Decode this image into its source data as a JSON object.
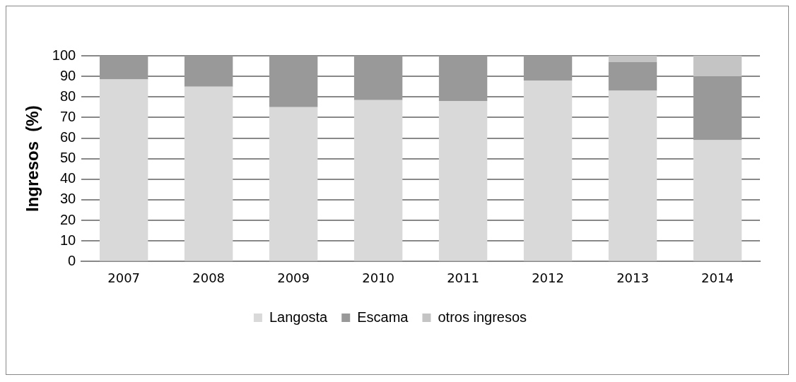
{
  "chart_data": {
    "type": "bar",
    "stacked": true,
    "ylabel": "Ingresos  (%)",
    "categories": [
      "2007",
      "2008",
      "2009",
      "2010",
      "2011",
      "2012",
      "2013",
      "2014"
    ],
    "series": [
      {
        "name": "Langosta",
        "color": "#d9d9d9",
        "values": [
          88.5,
          85,
          75,
          78.5,
          78,
          88,
          83,
          59
        ]
      },
      {
        "name": "Escama",
        "color": "#999999",
        "values": [
          11.5,
          15,
          25,
          21.5,
          22,
          12,
          14,
          31
        ]
      },
      {
        "name": "otros ingresos",
        "color": "#c4c4c4",
        "values": [
          null,
          null,
          null,
          null,
          null,
          null,
          3,
          10
        ]
      }
    ],
    "ylim": [
      0,
      100
    ],
    "yticks": [
      0,
      10,
      20,
      30,
      40,
      50,
      60,
      70,
      80,
      90,
      100
    ],
    "grid": "y",
    "legend": "bottom"
  }
}
